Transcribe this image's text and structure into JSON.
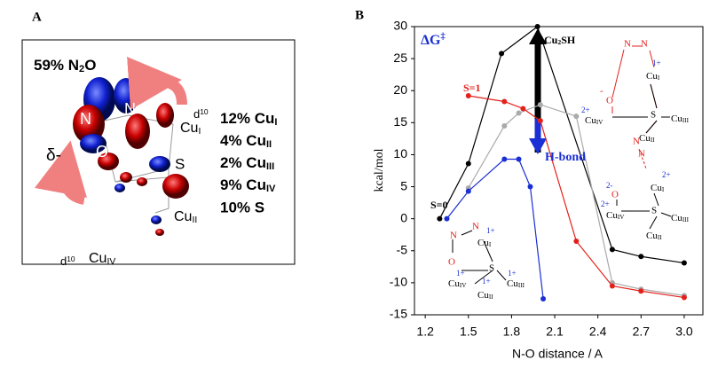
{
  "panel_a": {
    "label": "A",
    "heading": [
      {
        "t": "59% N"
      },
      {
        "t": "2",
        "s": "sub"
      },
      {
        "t": "O"
      }
    ],
    "contributions": [
      [
        {
          "t": "12% Cu"
        },
        {
          "t": "I",
          "s": "sub"
        }
      ],
      [
        {
          "t": "4% Cu"
        },
        {
          "t": "II",
          "s": "sub"
        }
      ],
      [
        {
          "t": "2% Cu"
        },
        {
          "t": "III",
          "s": "sub"
        }
      ],
      [
        {
          "t": "9% Cu"
        },
        {
          "t": "IV",
          "s": "sub"
        }
      ],
      "10% S"
    ],
    "atoms": [
      "N",
      "N",
      "O",
      "S",
      "δ-",
      [
        {
          "t": "d"
        },
        {
          "t": "10",
          "s": "sup"
        }
      ],
      [
        {
          "t": "d"
        },
        {
          "t": "10",
          "s": "sup"
        }
      ],
      [
        {
          "t": "Cu"
        },
        {
          "t": "I",
          "s": "sub"
        }
      ],
      [
        {
          "t": "Cu"
        },
        {
          "t": "IV",
          "s": "sub"
        }
      ],
      [
        {
          "t": "Cu"
        },
        {
          "t": "II",
          "s": "sub"
        }
      ]
    ]
  },
  "chart_data": {
    "type": "line",
    "label": "B",
    "x_label": "N-O distance / A",
    "y_label": "kcal/mol",
    "xlim": [
      1.125,
      3.13
    ],
    "ylim": [
      -15,
      30
    ],
    "xticks": [
      1.2,
      1.5,
      1.8,
      2.1,
      2.4,
      2.7,
      {
        "value": 3,
        "label": "3.0"
      }
    ],
    "yticks": [
      -15,
      -10,
      -5,
      0,
      5,
      10,
      15,
      20,
      25,
      30
    ],
    "series": [
      {
        "color": "#000000",
        "x": [
          1.3,
          1.5,
          1.73,
          1.98,
          2.5,
          2.7,
          3.0
        ],
        "values": [
          0,
          8.6,
          25.8,
          30,
          -4.8,
          -5.9,
          -6.9
        ]
      },
      {
        "color": "#aaaaaa",
        "x": [
          1.5,
          1.75,
          1.85,
          2.0,
          2.25,
          2.5,
          2.7,
          3.0
        ],
        "values": [
          4.8,
          14.5,
          16.5,
          17.8,
          16,
          -10,
          -11,
          -12
        ]
      },
      {
        "color": "#e3211c",
        "x": [
          1.5,
          1.75,
          1.88,
          2.0,
          2.25,
          2.5,
          2.7,
          3.0
        ],
        "values": [
          19.2,
          18.3,
          17.2,
          15.3,
          -3.5,
          -10.5,
          -11.3,
          -12.3
        ]
      },
      {
        "color": "#1a2fd4",
        "x": [
          1.35,
          1.5,
          1.75,
          1.85,
          1.93,
          2.02
        ],
        "values": [
          0,
          4.3,
          9.3,
          9.3,
          5,
          -12.5
        ]
      }
    ],
    "annotations": {
      "dg": [
        {
          "t": "ΔG"
        },
        {
          "t": "‡",
          "s": "sup"
        }
      ],
      "cu2sh": [
        {
          "t": "Cu"
        },
        {
          "t": "2",
          "s": "sub"
        },
        {
          "t": "SH"
        }
      ],
      "hbond": "H-bond",
      "s1": "S=1",
      "s0": "S=0"
    },
    "insets": [
      [
        "N",
        "N",
        "1+",
        [
          {
            "t": "Cu"
          },
          {
            "t": "I",
            "s": "sub"
          }
        ],
        "-",
        "O",
        "2+",
        [
          {
            "t": "Cu"
          },
          {
            "t": "IV",
            "s": "sub"
          }
        ],
        "S",
        [
          {
            "t": "Cu"
          },
          {
            "t": "III",
            "s": "sub"
          }
        ],
        [
          {
            "t": "Cu"
          },
          {
            "t": "II",
            "s": "sub"
          }
        ]
      ],
      [
        "N",
        "N",
        "2+",
        [
          {
            "t": "Cu"
          },
          {
            "t": "I",
            "s": "sub"
          }
        ],
        "2-",
        "O",
        "2+",
        [
          {
            "t": "Cu"
          },
          {
            "t": "IV",
            "s": "sub"
          }
        ],
        "S",
        [
          {
            "t": "Cu"
          },
          {
            "t": "III",
            "s": "sub"
          }
        ],
        [
          {
            "t": "Cu"
          },
          {
            "t": "II",
            "s": "sub"
          }
        ]
      ],
      [
        "N",
        "N",
        "1+",
        [
          {
            "t": "Cu"
          },
          {
            "t": "I",
            "s": "sub"
          }
        ],
        "O",
        "1+",
        [
          {
            "t": "Cu"
          },
          {
            "t": "IV",
            "s": "sub"
          }
        ],
        "S",
        "1+",
        [
          {
            "t": "Cu"
          },
          {
            "t": "III",
            "s": "sub"
          }
        ],
        "1+",
        [
          {
            "t": "Cu"
          },
          {
            "t": "II",
            "s": "sub"
          }
        ]
      ]
    ]
  }
}
